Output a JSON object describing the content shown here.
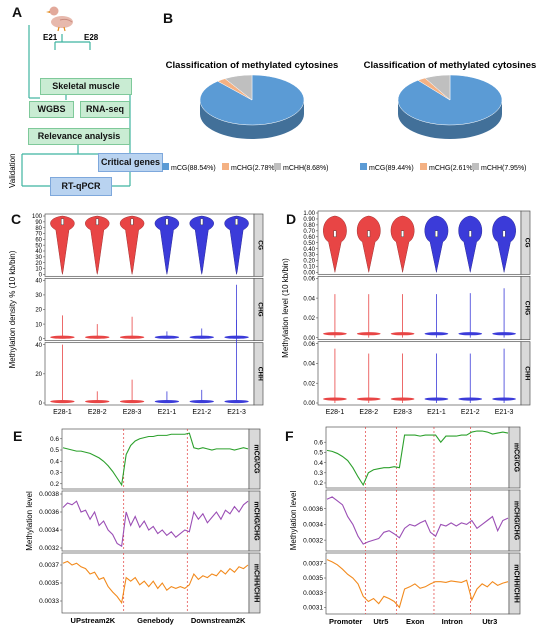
{
  "panels": {
    "a": "A",
    "b": "B",
    "c": "C",
    "d": "D",
    "e": "E",
    "f": "F"
  },
  "panel_a": {
    "day1": "E21",
    "day2": "E28",
    "tissue": "Skeletal muscle",
    "method1": "WGBS",
    "method2": "RNA-seq",
    "analysis": "Relevance analysis",
    "genes": "Critical genes",
    "validation_method": "RT-qPCR",
    "validation_label": "Validation"
  },
  "chart_data": [
    {
      "type": "pie",
      "title": "Classification of methylated cytosines",
      "categories": [
        "mCG(88.54%)",
        "mCHG(2.78%)",
        "mCHH(8.68%)"
      ],
      "values": [
        88.54,
        2.78,
        8.68
      ],
      "colors": [
        "#5b9bd5",
        "#f4b183",
        "#bfbfbf"
      ]
    },
    {
      "type": "pie",
      "title": "Classification of methylated cytosines",
      "categories": [
        "mCG(89.44%)",
        "mCHG(2.61%)",
        "mCHH(7.95%)"
      ],
      "values": [
        89.44,
        2.61,
        7.95
      ],
      "colors": [
        "#5b9bd5",
        "#f4b183",
        "#bfbfbf"
      ]
    },
    {
      "type": "violin",
      "ylabel": "Methylation density % (10 kb/bin)",
      "categories": [
        "E28-1",
        "E28-2",
        "E28-3",
        "E21-1",
        "E21-2",
        "E21-3"
      ],
      "group_colors": [
        "#e84545",
        "#e84545",
        "#e84545",
        "#3b3bd9",
        "#3b3bd9",
        "#3b3bd9"
      ],
      "facets": [
        {
          "name": "CG",
          "ylim": [
            0,
            100
          ],
          "ticks": [
            0,
            10,
            20,
            30,
            40,
            50,
            60,
            70,
            80,
            90,
            100
          ],
          "medians": [
            90,
            90,
            90,
            90,
            90,
            90
          ],
          "max": [
            100,
            100,
            100,
            100,
            100,
            100
          ]
        },
        {
          "name": "CHG",
          "ylim": [
            0,
            40
          ],
          "ticks": [
            0,
            10,
            20,
            30,
            40
          ],
          "medians": [
            1,
            1,
            1,
            1,
            1,
            1
          ],
          "max": [
            16,
            10,
            15,
            5,
            7,
            37
          ]
        },
        {
          "name": "CHH",
          "ylim": [
            0,
            40
          ],
          "ticks": [
            0,
            20,
            40
          ],
          "medians": [
            1,
            1,
            1,
            1,
            1,
            1
          ],
          "max": [
            40,
            8,
            16,
            8,
            9,
            57
          ]
        }
      ]
    },
    {
      "type": "violin",
      "ylabel": "Methylation level (10 kb/bin)",
      "categories": [
        "E28-1",
        "E28-2",
        "E28-3",
        "E21-1",
        "E21-2",
        "E21-3"
      ],
      "group_colors": [
        "#e84545",
        "#e84545",
        "#e84545",
        "#3b3bd9",
        "#3b3bd9",
        "#3b3bd9"
      ],
      "facets": [
        {
          "name": "CG",
          "ylim": [
            0,
            1
          ],
          "ticks": [
            "0.00",
            "0.10",
            "0.20",
            "0.30",
            "0.40",
            "0.50",
            "0.60",
            "0.70",
            "0.80",
            "0.90",
            "1.00"
          ],
          "medians": [
            0.65,
            0.65,
            0.65,
            0.65,
            0.65,
            0.65
          ],
          "max": [
            0.95,
            0.95,
            0.95,
            0.95,
            0.95,
            0.95
          ]
        },
        {
          "name": "CHG",
          "ylim": [
            0,
            0.06
          ],
          "ticks": [
            "0.00",
            "0.02",
            "0.04",
            "0.06"
          ],
          "medians": [
            0.004,
            0.004,
            0.004,
            0.004,
            0.004,
            0.004
          ],
          "max": [
            0.044,
            0.044,
            0.044,
            0.044,
            0.045,
            0.05
          ]
        },
        {
          "name": "CHH",
          "ylim": [
            0,
            0.06
          ],
          "ticks": [
            "0.00",
            "0.02",
            "0.04",
            "0.06"
          ],
          "medians": [
            0.004,
            0.004,
            0.004,
            0.004,
            0.004,
            0.004
          ],
          "max": [
            0.055,
            0.05,
            0.05,
            0.05,
            0.05,
            0.055
          ]
        }
      ]
    },
    {
      "type": "line",
      "ylabel": "Methylation level",
      "x_regions": [
        "UPstream2K",
        "Genebody",
        "Downstream2K"
      ],
      "facets": [
        {
          "name": "mCG/CG",
          "color": "#2ca02c",
          "ticks": [
            "0.2",
            "0.3",
            "0.4",
            "0.5",
            "0.6"
          ],
          "ylim": [
            0.18,
            0.66
          ],
          "values": [
            0.52,
            0.51,
            0.5,
            0.49,
            0.49,
            0.48,
            0.47,
            0.45,
            0.43,
            0.4,
            0.36,
            0.31,
            0.25,
            0.19,
            0.46,
            0.54,
            0.58,
            0.6,
            0.61,
            0.62,
            0.62,
            0.63,
            0.63,
            0.63,
            0.64,
            0.64,
            0.64,
            0.64,
            0.65,
            0.52,
            0.51,
            0.52,
            0.51,
            0.5,
            0.51,
            0.51,
            0.51,
            0.51,
            0.5,
            0.51,
            0.52,
            0.51
          ]
        },
        {
          "name": "mCHG/CHG",
          "color": "#9b4fb5",
          "ticks": [
            "0.0032",
            "0.0034",
            "0.0036",
            "0.0038"
          ],
          "ylim": [
            0.0032,
            0.0038
          ],
          "values": [
            0.00365,
            0.0037,
            0.00368,
            0.00372,
            0.0036,
            0.00362,
            0.00352,
            0.0036,
            0.00345,
            0.0035,
            0.0034,
            0.00335,
            0.00325,
            0.00322,
            0.0036,
            0.00345,
            0.00355,
            0.00343,
            0.0035,
            0.0034,
            0.00344,
            0.00336,
            0.0034,
            0.00334,
            0.00338,
            0.00332,
            0.00336,
            0.0034,
            0.00338,
            0.0036,
            0.00352,
            0.00358,
            0.00348,
            0.00354,
            0.0036,
            0.00352,
            0.00362,
            0.00358,
            0.00366,
            0.0036,
            0.00368,
            0.00372
          ]
        },
        {
          "name": "mCHH/CHH",
          "color": "#f28a1d",
          "ticks": [
            "0.0033",
            "0.0035",
            "0.0037"
          ],
          "ylim": [
            0.0032,
            0.0038
          ],
          "values": [
            0.00372,
            0.00374,
            0.0037,
            0.00372,
            0.00368,
            0.00366,
            0.0036,
            0.00362,
            0.00354,
            0.00356,
            0.00346,
            0.0034,
            0.00335,
            0.00328,
            0.00356,
            0.00352,
            0.00356,
            0.00348,
            0.00352,
            0.00346,
            0.00352,
            0.00344,
            0.0035,
            0.00342,
            0.00346,
            0.00344,
            0.00346,
            0.00344,
            0.00348,
            0.0036,
            0.00354,
            0.00358,
            0.00356,
            0.0036,
            0.00358,
            0.00364,
            0.0036,
            0.00366,
            0.00362,
            0.00368,
            0.00366,
            0.0037
          ]
        }
      ]
    },
    {
      "type": "line",
      "ylabel": "Methylation level",
      "x_regions": [
        "Promoter",
        "Utr5",
        "Exon",
        "Intron",
        "Utr3"
      ],
      "facets": [
        {
          "name": "mCG/CG",
          "color": "#2ca02c",
          "ticks": [
            "0.2",
            "0.3",
            "0.4",
            "0.5",
            "0.6"
          ],
          "ylim": [
            0.18,
            0.72
          ],
          "values": [
            0.52,
            0.51,
            0.49,
            0.46,
            0.42,
            0.35,
            0.26,
            0.18,
            0.3,
            0.33,
            0.34,
            0.35,
            0.35,
            0.36,
            0.35,
            0.67,
            0.67,
            0.67,
            0.66,
            0.67,
            0.67,
            0.67,
            0.6,
            0.66,
            0.66,
            0.66,
            0.67,
            0.67,
            0.7,
            0.71,
            0.71,
            0.7,
            0.68,
            0.69,
            0.7,
            0.69
          ]
        },
        {
          "name": "mCHG/CHG",
          "color": "#9b4fb5",
          "ticks": [
            "0.0032",
            "0.0034",
            "0.0036"
          ],
          "ylim": [
            0.0031,
            0.0038
          ],
          "values": [
            0.00372,
            0.00375,
            0.0037,
            0.00365,
            0.0035,
            0.0034,
            0.00325,
            0.00315,
            0.00318,
            0.0032,
            0.00322,
            0.0033,
            0.00332,
            0.00328,
            0.00323,
            0.00335,
            0.0034,
            0.00338,
            0.00342,
            0.00345,
            0.0033,
            0.00325,
            0.0034,
            0.00338,
            0.00342,
            0.00338,
            0.00342,
            0.0034,
            0.00345,
            0.00335,
            0.0034,
            0.00345,
            0.0035,
            0.00332,
            0.00345,
            0.00348
          ]
        },
        {
          "name": "mCHH/CHH",
          "color": "#f28a1d",
          "ticks": [
            "0.0031",
            "0.0033",
            "0.0035",
            "0.0037"
          ],
          "ylim": [
            0.00305,
            0.0038
          ],
          "values": [
            0.00375,
            0.00372,
            0.00368,
            0.00362,
            0.00355,
            0.0035,
            0.00342,
            0.00325,
            0.00318,
            0.00322,
            0.00315,
            0.00325,
            0.00322,
            0.00318,
            0.0031,
            0.00335,
            0.00338,
            0.00342,
            0.00336,
            0.00338,
            0.00342,
            0.00345,
            0.00345,
            0.00344,
            0.00346,
            0.00345,
            0.00344,
            0.00347,
            0.0032,
            0.00335,
            0.00342,
            0.00338,
            0.00345,
            0.0034,
            0.00343,
            0.00345
          ]
        }
      ]
    }
  ]
}
